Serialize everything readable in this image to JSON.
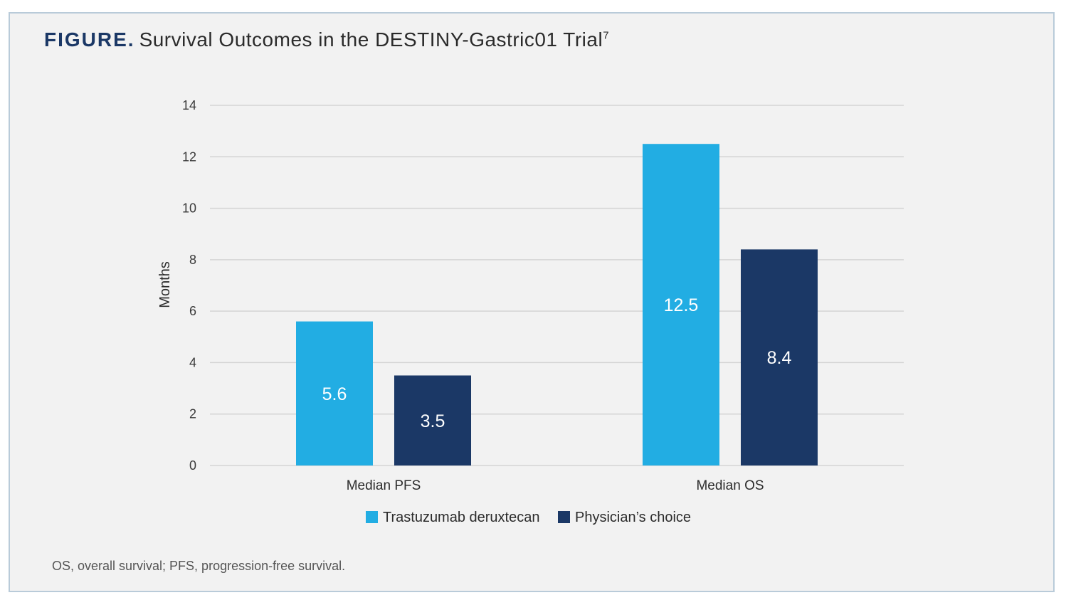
{
  "figure": {
    "label": "FIGURE.",
    "title": "Survival Outcomes in the DESTINY-Gastric01 Trial",
    "title_superscript": "7",
    "footnote": "OS, overall survival; PFS, progression-free survival."
  },
  "colors": {
    "series1": "#22ade3",
    "series2": "#1b3866",
    "grid": "#d4d4d4",
    "frame_background": "#f2f2f2",
    "frame_border": "#b9cbd9"
  },
  "chart_data": {
    "type": "bar",
    "title": "Survival Outcomes in the DESTINY-Gastric01 Trial",
    "categories": [
      "Median PFS",
      "Median OS"
    ],
    "series": [
      {
        "name": "Trastuzumab deruxtecan",
        "values": [
          5.6,
          12.5
        ],
        "labels": [
          "5.6",
          "12.5"
        ]
      },
      {
        "name": "Physician’s choice",
        "values": [
          3.5,
          8.4
        ],
        "labels": [
          "3.5",
          "8.4"
        ]
      }
    ],
    "xlabel": "",
    "ylabel": "Months",
    "ylim": [
      0,
      14
    ],
    "yticks": [
      0,
      2,
      4,
      6,
      8,
      10,
      12,
      14
    ],
    "grid": true,
    "legend_position": "bottom-center"
  }
}
